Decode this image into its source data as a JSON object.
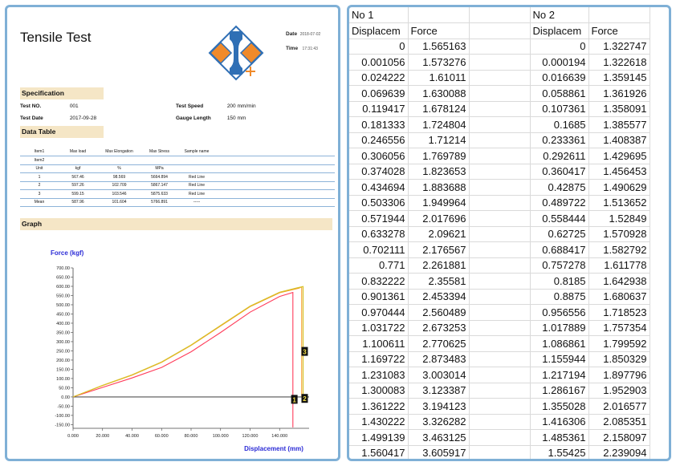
{
  "report": {
    "title": "Tensile Test",
    "date_label": "Date",
    "date_value": "2018-07-02",
    "time_label": "Time",
    "time_value": "17:31:43",
    "specification_heading": "Specification",
    "spec": {
      "test_no_label": "Test NO.",
      "test_no_value": "001",
      "test_date_label": "Test Date",
      "test_date_value": "2017-09-28",
      "test_speed_label": "Test Speed",
      "test_speed_value": "200 mm/min",
      "gauge_length_label": "Gauge Length",
      "gauge_length_value": "150 mm"
    },
    "data_table_heading": "Data Table",
    "data_table": {
      "header": [
        "Item1",
        "Max load",
        "Max Elongation",
        "Max Stress",
        "Sample name"
      ],
      "item2": "Item2",
      "units": [
        "Unit",
        "kgf",
        "%",
        "MPa",
        ""
      ],
      "rows": [
        [
          "1",
          "567.46",
          "98.569",
          "5664.894",
          "Red Line"
        ],
        [
          "2",
          "597.26",
          "102.709",
          "5867.147",
          "Red Line"
        ],
        [
          "3",
          "599.15",
          "103.546",
          "5875.633",
          "Red Line"
        ],
        [
          "Mean",
          "587.96",
          "101.604",
          "5766.891",
          "-----"
        ]
      ]
    },
    "graph_heading": "Graph",
    "colors": {
      "section_bar": "#f5e6c6",
      "table_rule": "#8db3d9",
      "axis_label": "#2b2bd6",
      "curve_red": "#ff3c5a",
      "curve_orange": "#f39a1e",
      "curve_yellow": "#d6c42a",
      "logo_blue": "#2f6fb5",
      "logo_orange": "#f08a2a"
    },
    "logo_icon": "tensile-specimen-logo"
  },
  "chart_data": {
    "type": "line",
    "ylabel": "Force (kgf)",
    "xlabel": "Displacement (mm)",
    "xlim": [
      0,
      160
    ],
    "ylim": [
      -170,
      700
    ],
    "x_ticks": [
      "0.000",
      "20.000",
      "40.000",
      "60.000",
      "80.000",
      "100.000",
      "120.000",
      "140.000"
    ],
    "y_ticks": [
      "700.00",
      "650.00",
      "600.00",
      "550.00",
      "500.00",
      "450.00",
      "400.00",
      "350.00",
      "300.00",
      "250.00",
      "200.00",
      "150.00",
      "100.00",
      "50.00",
      "0.00",
      "-50.00",
      "-100.00",
      "-150.00"
    ],
    "series": [
      {
        "name": "1",
        "color": "#ff3c5a",
        "x": [
          0,
          20,
          40,
          60,
          80,
          100,
          120,
          140,
          149,
          149
        ],
        "y": [
          0,
          52,
          103,
          160,
          245,
          350,
          460,
          545,
          567,
          -165
        ]
      },
      {
        "name": "2",
        "color": "#f39a1e",
        "x": [
          0,
          20,
          40,
          60,
          80,
          100,
          120,
          140,
          153,
          155,
          155
        ],
        "y": [
          0,
          62,
          118,
          188,
          280,
          385,
          490,
          565,
          590,
          597,
          0
        ]
      },
      {
        "name": "3",
        "color": "#d6c42a",
        "x": [
          0,
          20,
          40,
          60,
          80,
          100,
          120,
          140,
          152,
          156,
          156
        ],
        "y": [
          0,
          63,
          120,
          190,
          282,
          388,
          493,
          568,
          592,
          599,
          0
        ]
      }
    ],
    "markers": [
      {
        "label": "1",
        "x": 150,
        "y": -15
      },
      {
        "label": "2",
        "x": 157,
        "y": -10
      },
      {
        "label": "3",
        "x": 157,
        "y": 245
      }
    ]
  },
  "sheet": {
    "group_labels": [
      "No 1",
      "No 2"
    ],
    "col_headers": [
      "Displacem",
      "Force",
      "Displacem",
      "Force"
    ],
    "rows": [
      [
        "0",
        "1.565163",
        "0",
        "1.322747"
      ],
      [
        "0.001056",
        "1.573276",
        "0.000194",
        "1.322618"
      ],
      [
        "0.024222",
        "1.61011",
        "0.016639",
        "1.359145"
      ],
      [
        "0.069639",
        "1.630088",
        "0.058861",
        "1.361926"
      ],
      [
        "0.119417",
        "1.678124",
        "0.107361",
        "1.358091"
      ],
      [
        "0.181333",
        "1.724804",
        "0.1685",
        "1.385577"
      ],
      [
        "0.246556",
        "1.71214",
        "0.233361",
        "1.408387"
      ],
      [
        "0.306056",
        "1.769789",
        "0.292611",
        "1.429695"
      ],
      [
        "0.374028",
        "1.823653",
        "0.360417",
        "1.456453"
      ],
      [
        "0.434694",
        "1.883688",
        "0.42875",
        "1.490629"
      ],
      [
        "0.503306",
        "1.949964",
        "0.489722",
        "1.513652"
      ],
      [
        "0.571944",
        "2.017696",
        "0.558444",
        "1.52849"
      ],
      [
        "0.633278",
        "2.09621",
        "0.62725",
        "1.570928"
      ],
      [
        "0.702111",
        "2.176567",
        "0.688417",
        "1.582792"
      ],
      [
        "0.771",
        "2.261881",
        "0.757278",
        "1.611778"
      ],
      [
        "0.832222",
        "2.35581",
        "0.8185",
        "1.642938"
      ],
      [
        "0.901361",
        "2.453394",
        "0.8875",
        "1.680637"
      ],
      [
        "0.970444",
        "2.560489",
        "0.956556",
        "1.718523"
      ],
      [
        "1.031722",
        "2.673253",
        "1.017889",
        "1.757354"
      ],
      [
        "1.100611",
        "2.770625",
        "1.086861",
        "1.799592"
      ],
      [
        "1.169722",
        "2.873483",
        "1.155944",
        "1.850329"
      ],
      [
        "1.231083",
        "3.003014",
        "1.217194",
        "1.897796"
      ],
      [
        "1.300083",
        "3.123387",
        "1.286167",
        "1.952903"
      ],
      [
        "1.361222",
        "3.194123",
        "1.355028",
        "2.016577"
      ],
      [
        "1.430222",
        "3.326282",
        "1.416306",
        "2.085351"
      ],
      [
        "1.499139",
        "3.463125",
        "1.485361",
        "2.158097"
      ],
      [
        "1.560417",
        "3.605917",
        "1.55425",
        "2.239094"
      ]
    ]
  }
}
